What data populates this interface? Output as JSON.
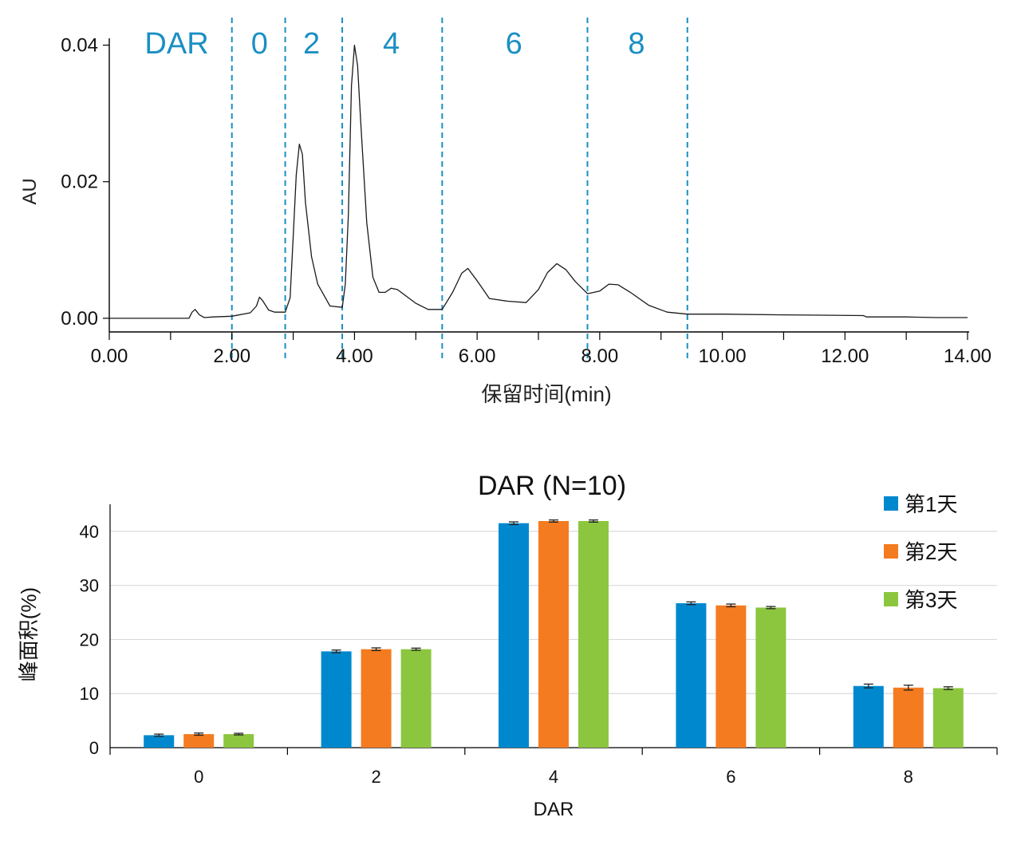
{
  "chart_data": [
    {
      "type": "line",
      "xlabel": "保留时间(min)",
      "ylabel": "AU",
      "xlim": [
        0.0,
        14.0
      ],
      "ylim": [
        -0.002,
        0.041
      ],
      "x_ticks": [
        "0.00",
        "2.00",
        "4.00",
        "6.00",
        "8.00",
        "10.00",
        "12.00",
        "14.00"
      ],
      "x_tick_values": [
        0,
        2,
        4,
        6,
        8,
        10,
        12,
        14
      ],
      "y_ticks": [
        "0.00",
        "0.02",
        "0.04"
      ],
      "y_tick_values": [
        0.0,
        0.02,
        0.04
      ],
      "region_header": "DAR",
      "regions": [
        {
          "label": "0",
          "center": 2.45
        },
        {
          "label": "2",
          "center": 3.3
        },
        {
          "label": "4",
          "center": 4.6
        },
        {
          "label": "6",
          "center": 6.6
        },
        {
          "label": "8",
          "center": 8.6
        }
      ],
      "region_boundaries": [
        2.0,
        2.87,
        3.8,
        5.43,
        7.8,
        9.43
      ],
      "trace": {
        "x": [
          0.0,
          1.3,
          1.35,
          1.4,
          1.47,
          1.55,
          1.7,
          2.0,
          2.3,
          2.4,
          2.45,
          2.5,
          2.6,
          2.7,
          2.87,
          2.95,
          3.0,
          3.05,
          3.1,
          3.15,
          3.2,
          3.3,
          3.4,
          3.6,
          3.8,
          3.85,
          3.9,
          3.95,
          4.0,
          4.05,
          4.1,
          4.2,
          4.3,
          4.4,
          4.5,
          4.6,
          4.7,
          4.85,
          5.0,
          5.2,
          5.43,
          5.6,
          5.75,
          5.85,
          6.0,
          6.2,
          6.5,
          6.8,
          7.0,
          7.15,
          7.3,
          7.45,
          7.6,
          7.8,
          8.0,
          8.15,
          8.3,
          8.5,
          8.8,
          9.1,
          9.43,
          10.0,
          11.0,
          12.3,
          12.35,
          13.0,
          13.5,
          14.0
        ],
        "y": [
          0.0,
          0.0,
          0.0009,
          0.0013,
          0.0005,
          0.0001,
          0.0002,
          0.0003,
          0.0008,
          0.0018,
          0.0031,
          0.0026,
          0.0012,
          0.0009,
          0.0009,
          0.003,
          0.012,
          0.021,
          0.0255,
          0.024,
          0.017,
          0.009,
          0.005,
          0.0018,
          0.0016,
          0.005,
          0.015,
          0.034,
          0.04,
          0.037,
          0.029,
          0.014,
          0.006,
          0.0038,
          0.0038,
          0.0044,
          0.0042,
          0.0032,
          0.0022,
          0.0013,
          0.0013,
          0.0038,
          0.0066,
          0.0073,
          0.0055,
          0.0029,
          0.0025,
          0.0023,
          0.0042,
          0.0067,
          0.008,
          0.0071,
          0.0054,
          0.0036,
          0.004,
          0.005,
          0.0049,
          0.0038,
          0.0019,
          0.0009,
          0.0006,
          0.0006,
          0.0005,
          0.0004,
          0.0002,
          0.0002,
          0.0001,
          0.0001
        ]
      }
    },
    {
      "type": "bar",
      "title": "DAR (N=10)",
      "xlabel": "DAR",
      "ylabel": "峰面积(%)",
      "categories": [
        "0",
        "2",
        "4",
        "6",
        "8"
      ],
      "ylim": [
        0,
        45
      ],
      "y_ticks": [
        "0",
        "10",
        "20",
        "30",
        "40"
      ],
      "y_tick_values": [
        0,
        10,
        20,
        30,
        40
      ],
      "legend_position": "top-right",
      "series": [
        {
          "name": "第1天",
          "color": "#0088ce",
          "values": [
            2.3,
            17.8,
            41.5,
            26.7,
            11.4
          ],
          "errors": [
            0.2,
            0.25,
            0.25,
            0.25,
            0.35
          ]
        },
        {
          "name": "第2天",
          "color": "#f47b20",
          "values": [
            2.5,
            18.2,
            41.9,
            26.3,
            11.1
          ],
          "errors": [
            0.2,
            0.25,
            0.2,
            0.25,
            0.45
          ]
        },
        {
          "name": "第3天",
          "color": "#8cc63f",
          "values": [
            2.5,
            18.2,
            41.9,
            25.9,
            11.0
          ],
          "errors": [
            0.15,
            0.2,
            0.2,
            0.2,
            0.25
          ]
        }
      ]
    }
  ]
}
